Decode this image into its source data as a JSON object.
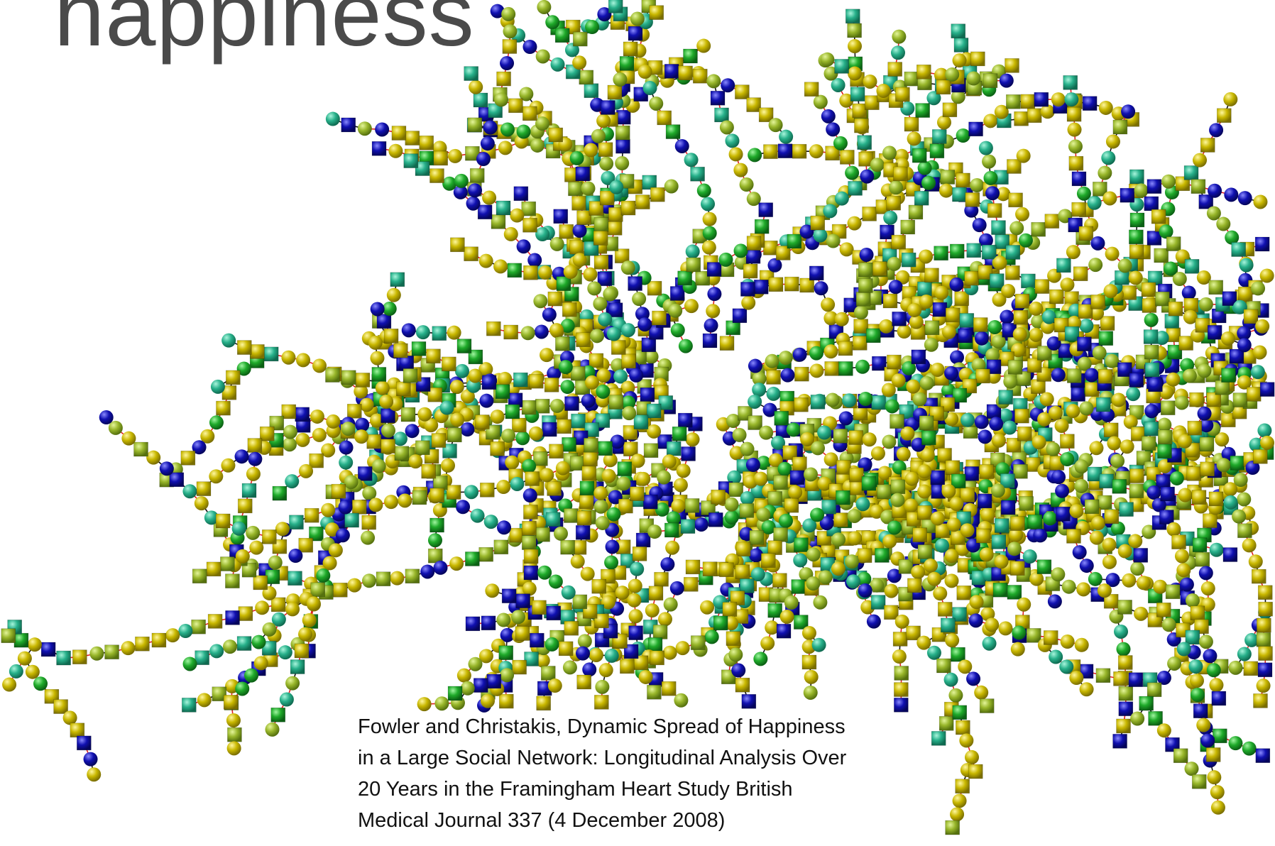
{
  "title": "happiness",
  "caption": [
    "Fowler and Christakis, Dynamic Spread of Happiness",
    "in a Large Social Network: Longitudinal Analysis Over",
    "20 Years in the Framingham Heart Study British",
    "Medical Journal 337 (4 December 2008)"
  ]
}
